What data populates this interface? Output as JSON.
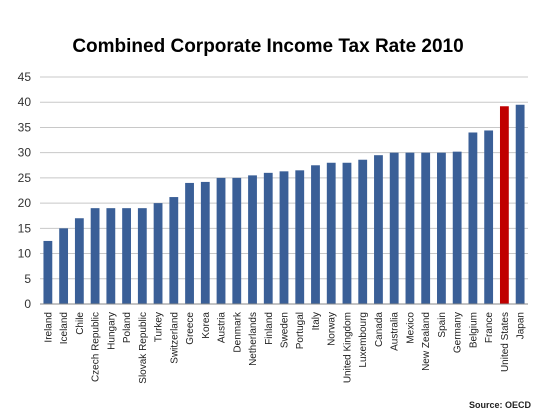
{
  "chart_data": {
    "type": "bar",
    "title": "Combined Corporate Income Tax Rate 2010",
    "source": "Source: OECD",
    "xlabel": "",
    "ylabel": "",
    "ylim": [
      0,
      45
    ],
    "yticks": [
      0,
      5,
      10,
      15,
      20,
      25,
      30,
      35,
      40,
      45
    ],
    "grid": true,
    "legend": "none",
    "colors": {
      "bar": "#3a5f97",
      "highlight": "#c00000",
      "grid": "#c8c8c8"
    },
    "highlight_category": "United States",
    "categories": [
      "Ireland",
      "Iceland",
      "Chile",
      "Czech Republic",
      "Hungary",
      "Poland",
      "Slovak Republic",
      "Turkey",
      "Switzerland",
      "Greece",
      "Korea",
      "Austria",
      "Denmark",
      "Netherlands",
      "Finland",
      "Sweden",
      "Portugal",
      "Italy",
      "Norway",
      "United Kingdom",
      "Luxembourg",
      "Canada",
      "Australia",
      "Mexico",
      "New Zealand",
      "Spain",
      "Germany",
      "Belgium",
      "France",
      "United States",
      "Japan"
    ],
    "values": [
      12.5,
      15,
      17,
      19,
      19,
      19,
      19,
      20,
      21.2,
      24,
      24.2,
      25,
      25,
      25.5,
      26,
      26.3,
      26.5,
      27.5,
      28,
      28,
      28.6,
      29.5,
      30,
      30,
      30,
      30,
      30.2,
      34,
      34.4,
      39.2,
      39.5
    ]
  }
}
